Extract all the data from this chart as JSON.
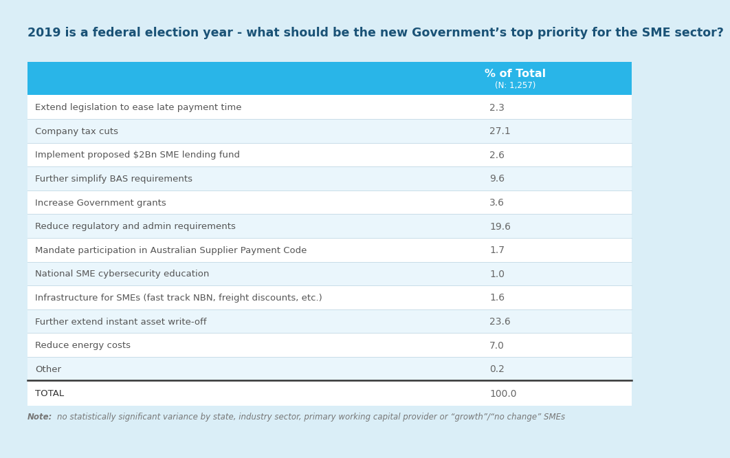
{
  "title": "2019 is a federal election year - what should be the new Government’s top priority for the SME sector?",
  "header_col1": "% of Total",
  "header_col2": "(N: 1,257)",
  "rows": [
    {
      "label": "Extend legislation to ease late payment time",
      "value": "2.3"
    },
    {
      "label": "Company tax cuts",
      "value": "27.1"
    },
    {
      "label": "Implement proposed $2Bn SME lending fund",
      "value": "2.6"
    },
    {
      "label": "Further simplify BAS requirements",
      "value": "9.6"
    },
    {
      "label": "Increase Government grants",
      "value": "3.6"
    },
    {
      "label": "Reduce regulatory and admin requirements",
      "value": "19.6"
    },
    {
      "label": "Mandate participation in Australian Supplier Payment Code",
      "value": "1.7"
    },
    {
      "label": "National SME cybersecurity education",
      "value": "1.0"
    },
    {
      "label": "Infrastructure for SMEs (fast track NBN, freight discounts, etc.)",
      "value": "1.6"
    },
    {
      "label": "Further extend instant asset write-off",
      "value": "23.6"
    },
    {
      "label": "Reduce energy costs",
      "value": "7.0"
    },
    {
      "label": "Other",
      "value": "0.2"
    }
  ],
  "total_label": "TOTAL",
  "total_value": "100.0",
  "note": "Note: no statistically significant variance by state, industry sector, primary working capital provider or “growth”/“no change” SMEs",
  "bg_color": "#daeef7",
  "header_bg_color": "#29b5e8",
  "header_text_color": "#ffffff",
  "title_color": "#1a5276",
  "row_label_color": "#555555",
  "value_color": "#666666",
  "total_label_color": "#333333",
  "total_value_color": "#666666",
  "row_even_bg": "#ffffff",
  "row_odd_bg": "#eaf6fc",
  "divider_color": "#c8dde8",
  "thick_divider_color": "#333333",
  "note_color": "#777777",
  "col_split": 0.615,
  "title_fontsize": 12.5,
  "header_fontsize": 11.5,
  "row_fontsize": 9.5,
  "note_fontsize": 8.5
}
